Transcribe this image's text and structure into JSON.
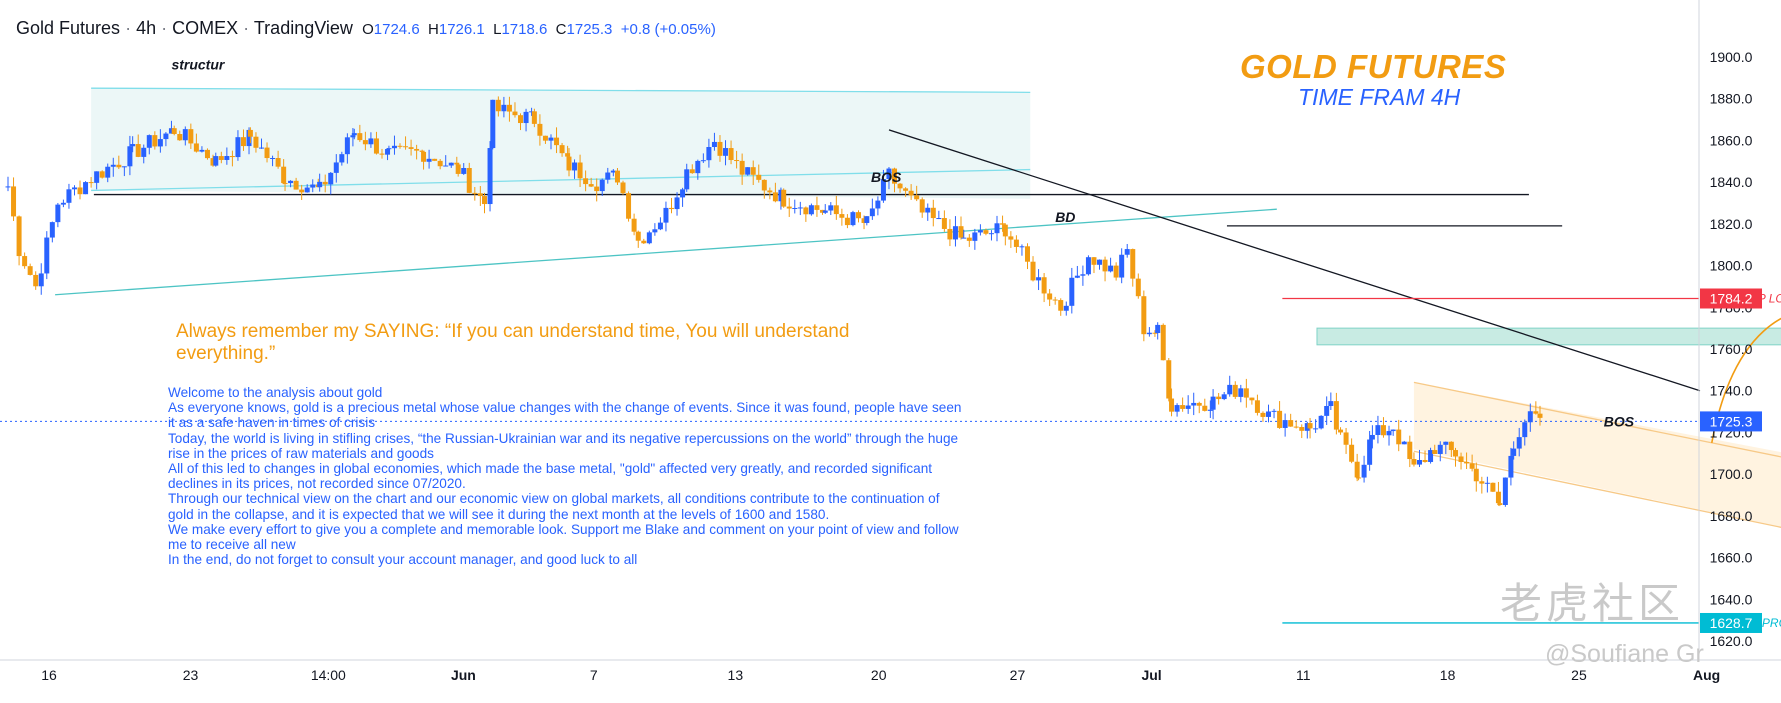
{
  "header": {
    "symbol": "Gold Futures",
    "interval": "4h",
    "exchange": "COMEX",
    "platform": "TradingView",
    "open_label": "O",
    "open": "1724.6",
    "high_label": "H",
    "high": "1726.1",
    "low_label": "L",
    "low": "1718.6",
    "close_label": "C",
    "close": "1725.3",
    "change": "+0.8 (+0.05%)"
  },
  "titles": {
    "main": "GOLD FUTURES",
    "sub": "TIME FRAM 4H"
  },
  "saying": "Always remember my SAYING: “If you can understand time, You will understand everything.”",
  "analysis": [
    "Welcome to the analysis about gold",
    "As everyone knows, gold is a precious metal whose value changes with the change of events. Since it was found, people have seen it as a safe haven in times of crisis",
    "Today, the world is living in stifling crises, “the Russian-Ukrainian war and its negative repercussions on the world” through the huge rise in the prices of raw materials and goods",
    "All of this led to changes in global economies, which made the base metal, \"gold\" affected very greatly, and recorded significant declines in its prices, not recorded since 07/2020.",
    "Through our technical view on the chart and our economic view on global markets, all conditions contribute to the continuation of gold in the collapse, and it is expected that we will see it during the next month at the levels of 1600 and 1580.",
    "We make every effort to give you a complete and memorable look. Support me Blake and comment on your point of view and follow me to receive all new",
    "In the end, do not forget to consult your account manager, and good luck to all"
  ],
  "watermark": {
    "brand": "老虎社区",
    "handle": "@Soufiane Gr"
  },
  "colors": {
    "up": "#2962ff",
    "down": "#f29c12",
    "axis_text": "#131722",
    "stop": "#f23645",
    "take_profit": "#00bcd4",
    "channel": "#80deea",
    "channel_fill": "#e0f2f1",
    "orange_fill": "#fff3e0"
  },
  "chart_data": {
    "type": "candlestick",
    "title": "Gold Futures 4h COMEX",
    "x_labels": [
      "16",
      "23",
      "14:00",
      "Jun",
      "7",
      "13",
      "20",
      "27",
      "Jul",
      "11",
      "18",
      "25",
      "Aug"
    ],
    "y_ticks": [
      1620.0,
      1640.0,
      1660.0,
      1680.0,
      1700.0,
      1720.0,
      1740.0,
      1760.0,
      1780.0,
      1800.0,
      1820.0,
      1840.0,
      1860.0,
      1880.0,
      1900.0
    ],
    "ylim": [
      1610,
      1910
    ],
    "last_price": 1725.3,
    "stop_loss": 1784.2,
    "take_profit": 1628.7,
    "anchors": [
      [
        0,
        1838
      ],
      [
        8,
        1808
      ],
      [
        20,
        1790
      ],
      [
        36,
        1830
      ],
      [
        60,
        1842
      ],
      [
        90,
        1854
      ],
      [
        120,
        1865
      ],
      [
        150,
        1850
      ],
      [
        175,
        1862
      ],
      [
        200,
        1842
      ],
      [
        225,
        1836
      ],
      [
        250,
        1864
      ],
      [
        275,
        1853
      ],
      [
        300,
        1854
      ],
      [
        325,
        1846
      ],
      [
        344,
        1830
      ],
      [
        350,
        1875
      ],
      [
        380,
        1870
      ],
      [
        405,
        1848
      ],
      [
        425,
        1840
      ],
      [
        440,
        1843
      ],
      [
        455,
        1812
      ],
      [
        475,
        1825
      ],
      [
        490,
        1845
      ],
      [
        510,
        1860
      ],
      [
        530,
        1845
      ],
      [
        560,
        1832
      ],
      [
        590,
        1826
      ],
      [
        620,
        1820
      ],
      [
        636,
        1843
      ],
      [
        660,
        1825
      ],
      [
        690,
        1812
      ],
      [
        720,
        1818
      ],
      [
        740,
        1796
      ],
      [
        760,
        1780
      ],
      [
        780,
        1805
      ],
      [
        800,
        1796
      ],
      [
        808,
        1807
      ],
      [
        820,
        1770
      ],
      [
        830,
        1768
      ],
      [
        840,
        1733
      ],
      [
        870,
        1735
      ],
      [
        890,
        1742
      ],
      [
        910,
        1728
      ],
      [
        940,
        1722
      ],
      [
        955,
        1731
      ],
      [
        962,
        1716
      ],
      [
        975,
        1701
      ],
      [
        985,
        1718
      ],
      [
        1000,
        1723
      ],
      [
        1015,
        1702
      ],
      [
        1030,
        1713
      ],
      [
        1045,
        1710
      ],
      [
        1060,
        1700
      ],
      [
        1077,
        1685
      ],
      [
        1087,
        1716
      ],
      [
        1095,
        1726
      ],
      [
        1106,
        1727
      ]
    ],
    "annotations": [
      {
        "text": "structur",
        "x": 118,
        "y": 1892
      },
      {
        "text": "BOS",
        "x": 623,
        "y": 1838
      },
      {
        "text": "BD",
        "x": 756,
        "y": 1819
      },
      {
        "text": "BOS",
        "x": 1152,
        "y": 1721
      },
      {
        "text": "STOP LOSS",
        "x": 1010,
        "y": 1784.2
      },
      {
        "text": "TAKE PROFIT",
        "x": 1010,
        "y": 1628.7
      }
    ]
  }
}
